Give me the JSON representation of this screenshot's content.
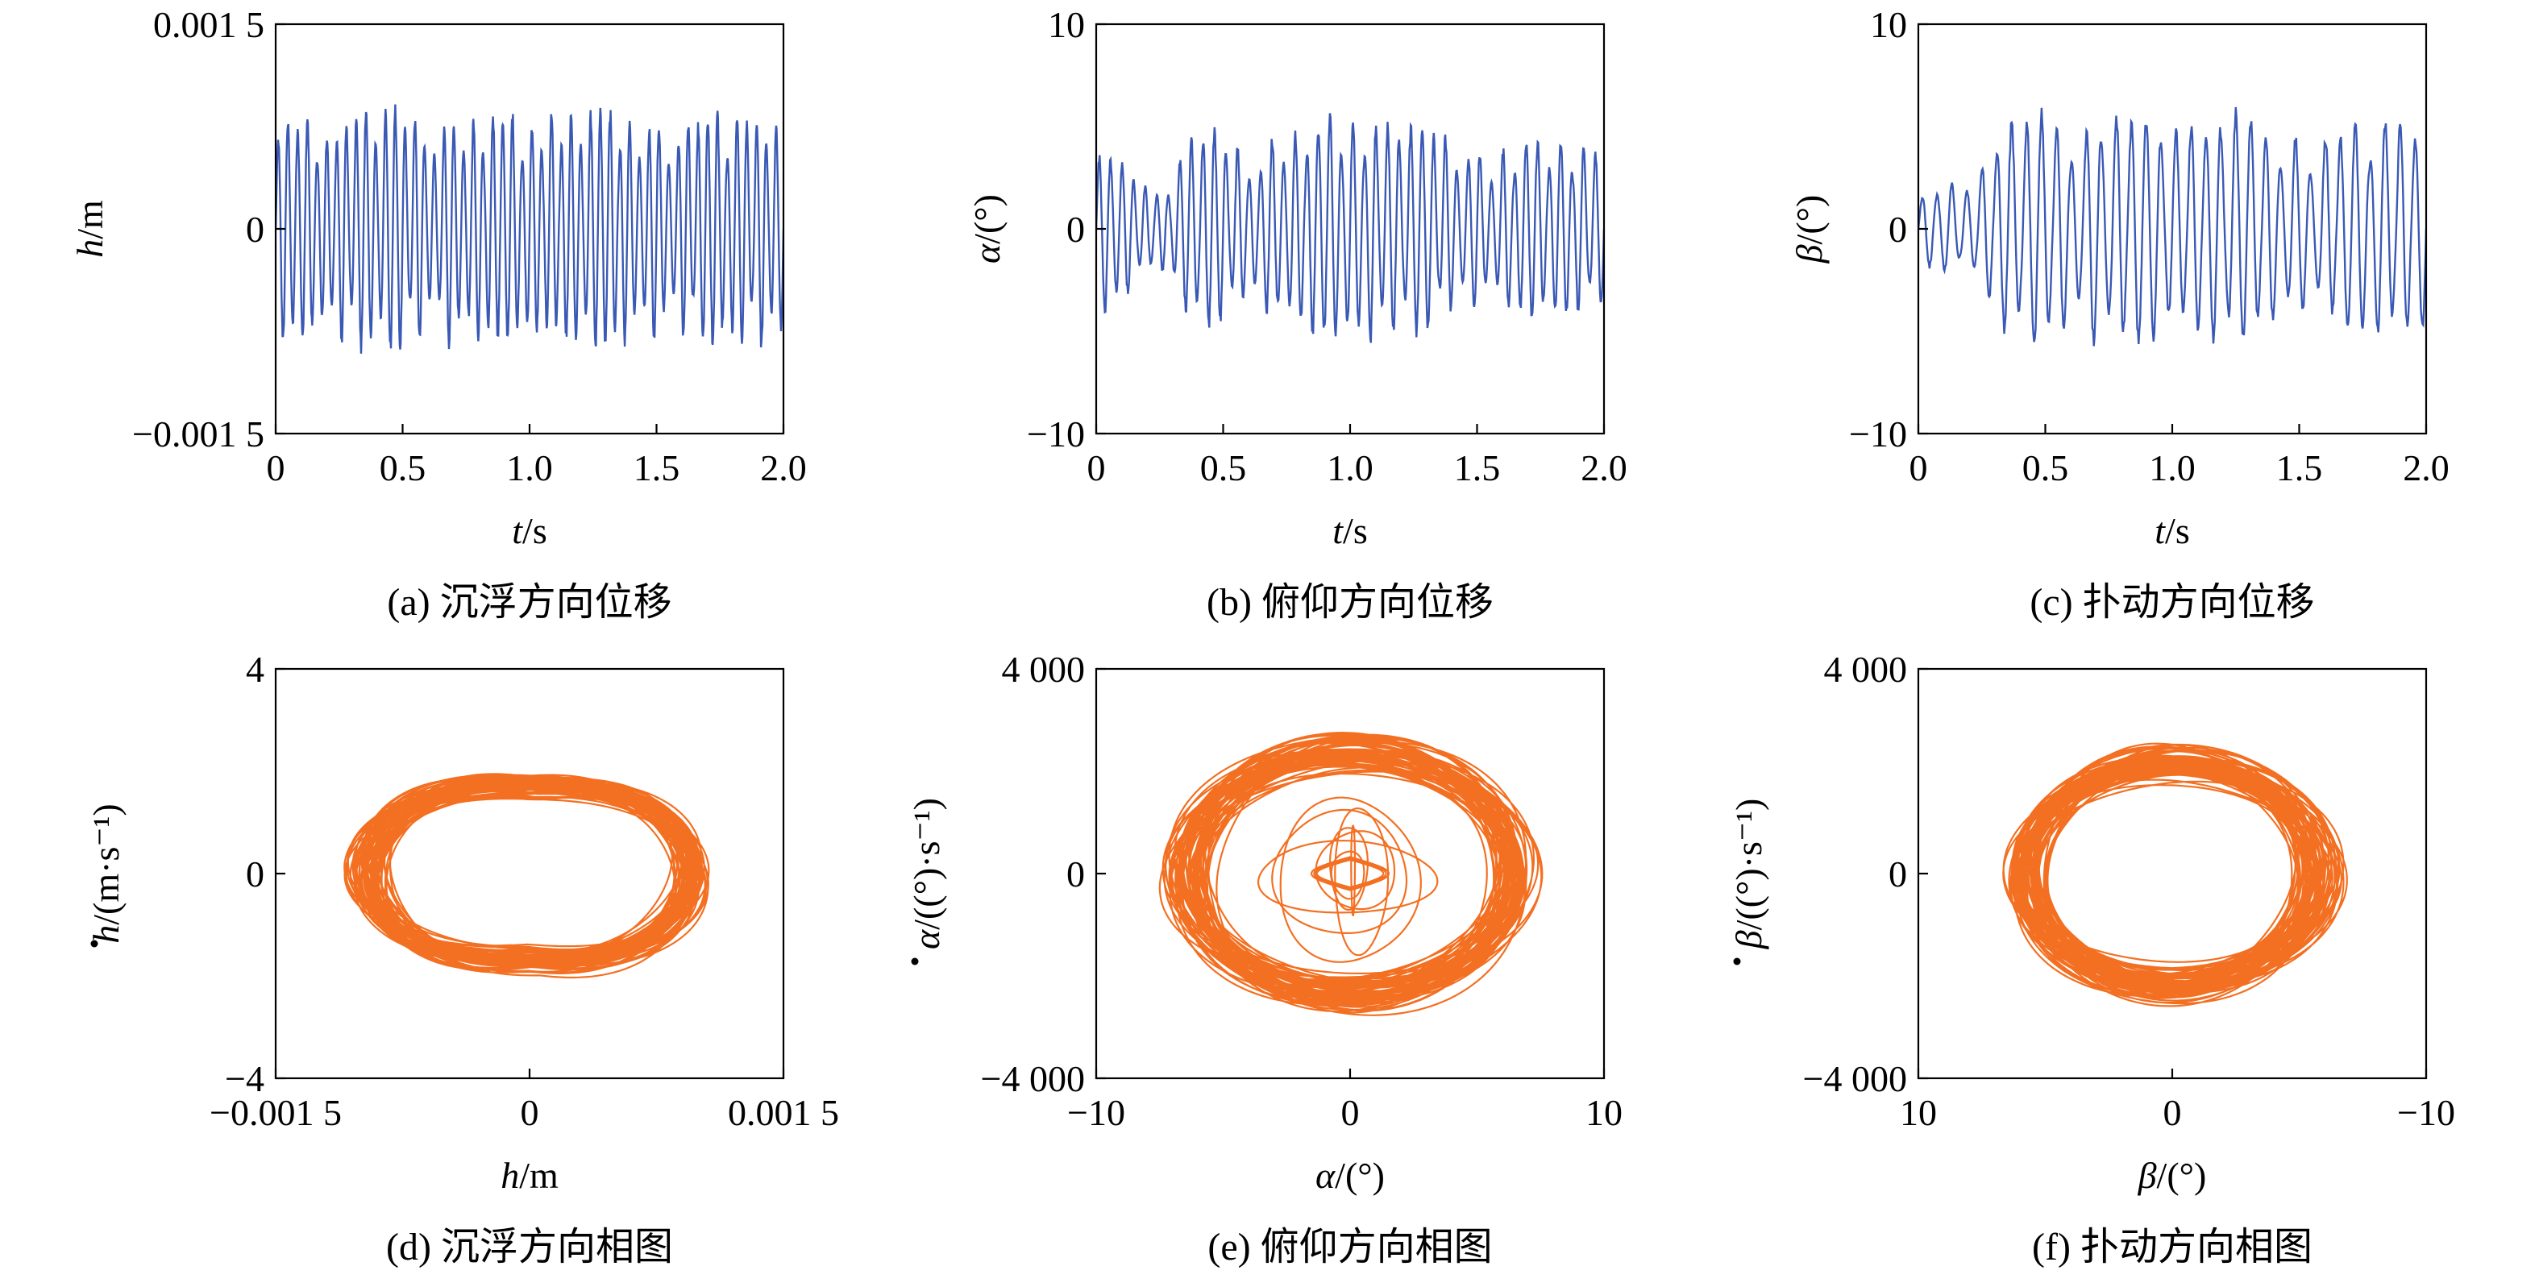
{
  "figure": {
    "panels": [
      {
        "id": "a",
        "caption": "(a) 沉浮方向位移",
        "xlabel_var": "t",
        "xlabel_unit": "/s",
        "ylabel_var": "h",
        "ylabel_unit": "/m",
        "dot": false,
        "xticks": [
          "0",
          "0.5",
          "1.0",
          "1.5",
          "2.0"
        ],
        "yticks": [
          "0.001 5",
          "0",
          "−0.001 5"
        ]
      },
      {
        "id": "b",
        "caption": "(b) 俯仰方向位移",
        "xlabel_var": "t",
        "xlabel_unit": "/s",
        "ylabel_var": "α",
        "ylabel_unit": "/(°)",
        "dot": false,
        "xticks": [
          "0",
          "0.5",
          "1.0",
          "1.5",
          "2.0"
        ],
        "yticks": [
          "10",
          "0",
          "−10"
        ]
      },
      {
        "id": "c",
        "caption": "(c) 扑动方向位移",
        "xlabel_var": "t",
        "xlabel_unit": "/s",
        "ylabel_var": "β",
        "ylabel_unit": "/(°)",
        "dot": false,
        "xticks": [
          "0",
          "0.5",
          "1.0",
          "1.5",
          "2.0"
        ],
        "yticks": [
          "10",
          "0",
          "−10"
        ]
      },
      {
        "id": "d",
        "caption": "(d) 沉浮方向相图",
        "xlabel_var": "h",
        "xlabel_unit": "/m",
        "ylabel_var": "h",
        "ylabel_unit": "/(m·s⁻¹)",
        "dot": true,
        "xticks": [
          "−0.001 5",
          "0",
          "0.001 5"
        ],
        "yticks": [
          "4",
          "0",
          "−4"
        ]
      },
      {
        "id": "e",
        "caption": "(e) 俯仰方向相图",
        "xlabel_var": "α",
        "xlabel_unit": "/(°)",
        "ylabel_var": "α",
        "ylabel_unit": "/((°)·s⁻¹)",
        "dot": true,
        "xticks": [
          "−10",
          "0",
          "10"
        ],
        "yticks": [
          "4 000",
          "0",
          "−4 000"
        ]
      },
      {
        "id": "f",
        "caption": "(f) 扑动方向相图",
        "xlabel_var": "β",
        "xlabel_unit": "/(°)",
        "ylabel_var": "β",
        "ylabel_unit": "/((°)·s⁻¹)",
        "dot": true,
        "xticks": [
          "10",
          "0",
          "−10"
        ],
        "yticks": [
          "4 000",
          "0",
          "−4 000"
        ]
      }
    ]
  },
  "chart_data": [
    {
      "type": "line",
      "panel": "a",
      "color": "#3a59b5",
      "xlim": [
        0,
        2.0
      ],
      "ylim": [
        -0.0015,
        0.0015
      ],
      "series": [
        {
          "fs": 26,
          "dur": 2.0,
          "env_t": [
            0,
            0.4,
            0.8,
            1.2,
            1.6,
            2.0
          ],
          "env_v": [
            0.00085,
            0.0009,
            0.00085,
            0.0009,
            0.00085,
            0.0009
          ]
        }
      ]
    },
    {
      "type": "line",
      "panel": "b",
      "color": "#3a59b5",
      "xlim": [
        0,
        2.0
      ],
      "ylim": [
        -10,
        10
      ],
      "series": [
        {
          "fs": 22,
          "dur": 2.0,
          "env_t": [
            0,
            0.15,
            0.28,
            0.4,
            0.55,
            0.8,
            1.0,
            1.2,
            1.5,
            1.8,
            2.0
          ],
          "env_v": [
            4.5,
            3.0,
            2.0,
            5.5,
            4.0,
            5.0,
            6.0,
            5.5,
            4.0,
            4.5,
            4.5
          ]
        }
      ]
    },
    {
      "type": "line",
      "panel": "c",
      "color": "#3a59b5",
      "xlim": [
        0,
        2.0
      ],
      "ylim": [
        -10,
        10
      ],
      "series": [
        {
          "fs": 17,
          "dur": 2.0,
          "env_t": [
            0,
            0.1,
            0.2,
            0.3,
            0.4,
            0.55,
            0.8,
            1.0,
            1.2,
            1.5,
            1.8,
            2.0
          ],
          "env_v": [
            1.8,
            2.2,
            2.5,
            4.5,
            6.0,
            5.5,
            6.0,
            5.5,
            6.0,
            4.5,
            5.5,
            6.0
          ]
        }
      ]
    },
    {
      "type": "line",
      "panel": "d",
      "color": "#f37022",
      "xlim": [
        -0.0015,
        0.0015
      ],
      "ylim": [
        -4,
        4
      ],
      "series": [
        {
          "kind": "phase",
          "amp_x": 0.00105,
          "amp_y": 2.1,
          "inner": 0.0,
          "pinch": 0.12,
          "spread": 0.06
        }
      ]
    },
    {
      "type": "line",
      "panel": "e",
      "color": "#f37022",
      "xlim": [
        -10,
        10
      ],
      "ylim": [
        -4000,
        4000
      ],
      "series": [
        {
          "kind": "phase",
          "amp_x": 7.3,
          "amp_y": 2700,
          "inner": 0.2,
          "pinch": 0.0,
          "spread": 0.1
        }
      ]
    },
    {
      "type": "line",
      "panel": "f",
      "color": "#f37022",
      "xlim": [
        10,
        -10
      ],
      "ylim": [
        -4000,
        4000
      ],
      "series": [
        {
          "kind": "phase",
          "amp_x": 6.6,
          "amp_y": 2500,
          "inner": 0.0,
          "pinch": 0.0,
          "spread": 0.15
        }
      ]
    }
  ]
}
